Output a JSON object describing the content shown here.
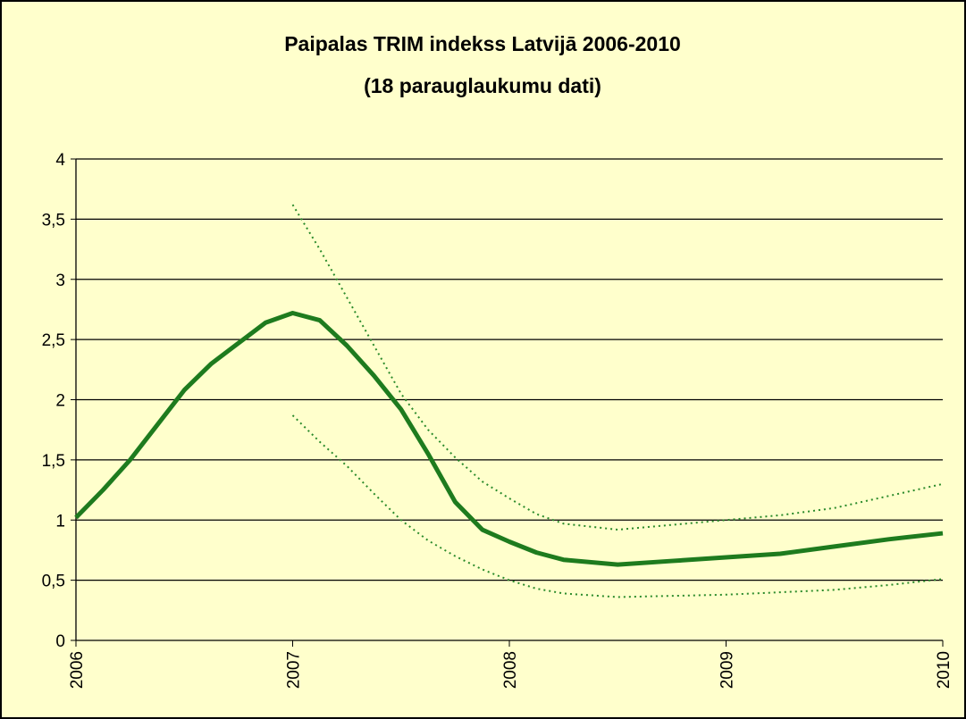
{
  "chart_data": {
    "type": "line",
    "title": "Paipalas TRIM indekss Latvijā 2006-2010",
    "subtitle": "(18 parauglaukumu dati)",
    "x": [
      2006,
      2006.125,
      2006.25,
      2006.375,
      2006.5,
      2006.625,
      2006.75,
      2006.875,
      2007,
      2007.125,
      2007.25,
      2007.375,
      2007.5,
      2007.625,
      2007.75,
      2007.875,
      2008,
      2008.125,
      2008.25,
      2008.5,
      2008.75,
      2009,
      2009.25,
      2009.5,
      2009.75,
      2010
    ],
    "series": [
      {
        "color": "#1e7b1e",
        "style": "solid",
        "values": [
          1.02,
          1.25,
          1.5,
          1.79,
          2.08,
          2.3,
          2.47,
          2.64,
          2.72,
          2.66,
          2.45,
          2.2,
          1.92,
          1.55,
          1.15,
          0.92,
          0.82,
          0.73,
          0.67,
          0.63,
          0.66,
          0.69,
          0.72,
          0.78,
          0.84,
          0.89
        ]
      },
      {
        "color": "#2a8a2a",
        "style": "dotted",
        "values": [
          null,
          null,
          null,
          null,
          null,
          null,
          null,
          null,
          3.62,
          3.25,
          2.85,
          2.45,
          2.05,
          1.75,
          1.52,
          1.32,
          1.18,
          1.05,
          0.97,
          0.92,
          0.96,
          1.0,
          1.04,
          1.1,
          1.2,
          1.3
        ]
      },
      {
        "color": "#2a8a2a",
        "style": "dotted",
        "values": [
          null,
          null,
          null,
          null,
          null,
          null,
          null,
          null,
          1.87,
          1.65,
          1.45,
          1.22,
          1.0,
          0.83,
          0.7,
          0.59,
          0.5,
          0.43,
          0.39,
          0.36,
          0.37,
          0.38,
          0.4,
          0.42,
          0.46,
          0.51
        ]
      }
    ],
    "xlim": [
      2006,
      2010
    ],
    "xticks": [
      2006,
      2007,
      2008,
      2009,
      2010
    ],
    "ylim": [
      0,
      4
    ],
    "yticks": [
      0,
      {
        "value": 0.5,
        "label": "0,5"
      },
      1,
      {
        "value": 1.5,
        "label": "1,5"
      },
      2,
      {
        "value": 2.5,
        "label": "2,5"
      },
      3,
      {
        "value": 3.5,
        "label": "3,5"
      },
      4
    ],
    "grid": true
  }
}
